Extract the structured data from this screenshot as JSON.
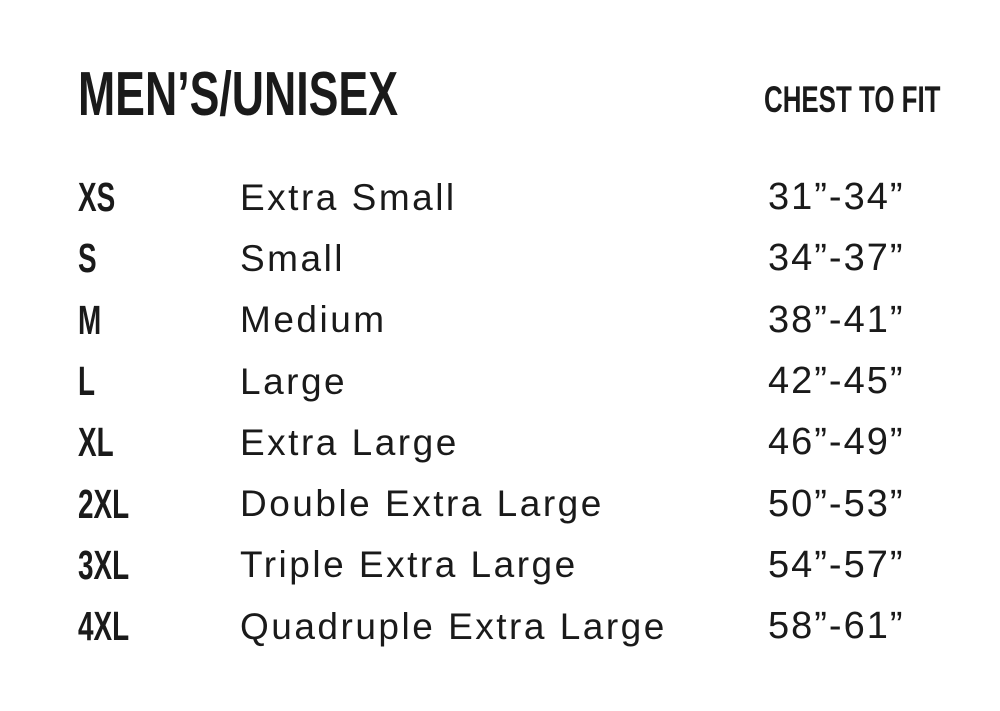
{
  "colors": {
    "text": "#1a1a1a",
    "background": "#ffffff"
  },
  "chart_data": {
    "type": "table",
    "title": "MEN’S/UNISEX",
    "chest_column_header": "CHEST TO FIT",
    "rows": [
      {
        "code": "XS",
        "name": "Extra Small",
        "chest_to_fit": "31”-34”"
      },
      {
        "code": "S",
        "name": "Small",
        "chest_to_fit": "34”-37”"
      },
      {
        "code": "M",
        "name": "Medium",
        "chest_to_fit": "38”-41”"
      },
      {
        "code": "L",
        "name": "Large",
        "chest_to_fit": "42”-45”"
      },
      {
        "code": "XL",
        "name": "Extra Large",
        "chest_to_fit": "46”-49”"
      },
      {
        "code": "2XL",
        "name": "Double Extra Large",
        "chest_to_fit": "50”-53”"
      },
      {
        "code": "3XL",
        "name": "Triple Extra Large",
        "chest_to_fit": "54”-57”"
      },
      {
        "code": "4XL",
        "name": "Quadruple Extra Large",
        "chest_to_fit": "58”-61”"
      }
    ]
  }
}
